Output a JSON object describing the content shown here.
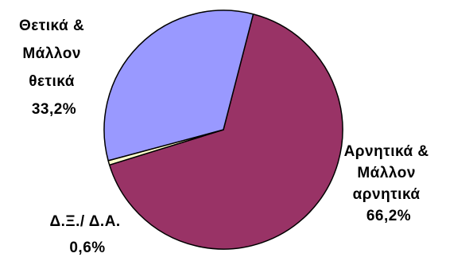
{
  "chart_data": {
    "type": "pie",
    "title": "",
    "unit": "%",
    "slices": [
      {
        "name": "Αρνητικά & Μάλλον αρνητικά",
        "value": 66.2,
        "color": "#993366",
        "label_lines": [
          "Αρνητικά &",
          "Μάλλον",
          "αρνητικά",
          "66,2%"
        ]
      },
      {
        "name": "Δ.Ξ./ Δ.Α.",
        "value": 0.6,
        "color": "#ffffcc",
        "label_lines": [
          "Δ.Ξ./ Δ.Α.",
          "0,6%"
        ]
      },
      {
        "name": "Θετικά & Μάλλον θετικά",
        "value": 33.2,
        "color": "#9999ff",
        "label_lines": [
          "Θετικά &",
          "Μάλλον",
          "θετικά",
          "33,2%"
        ]
      }
    ]
  }
}
